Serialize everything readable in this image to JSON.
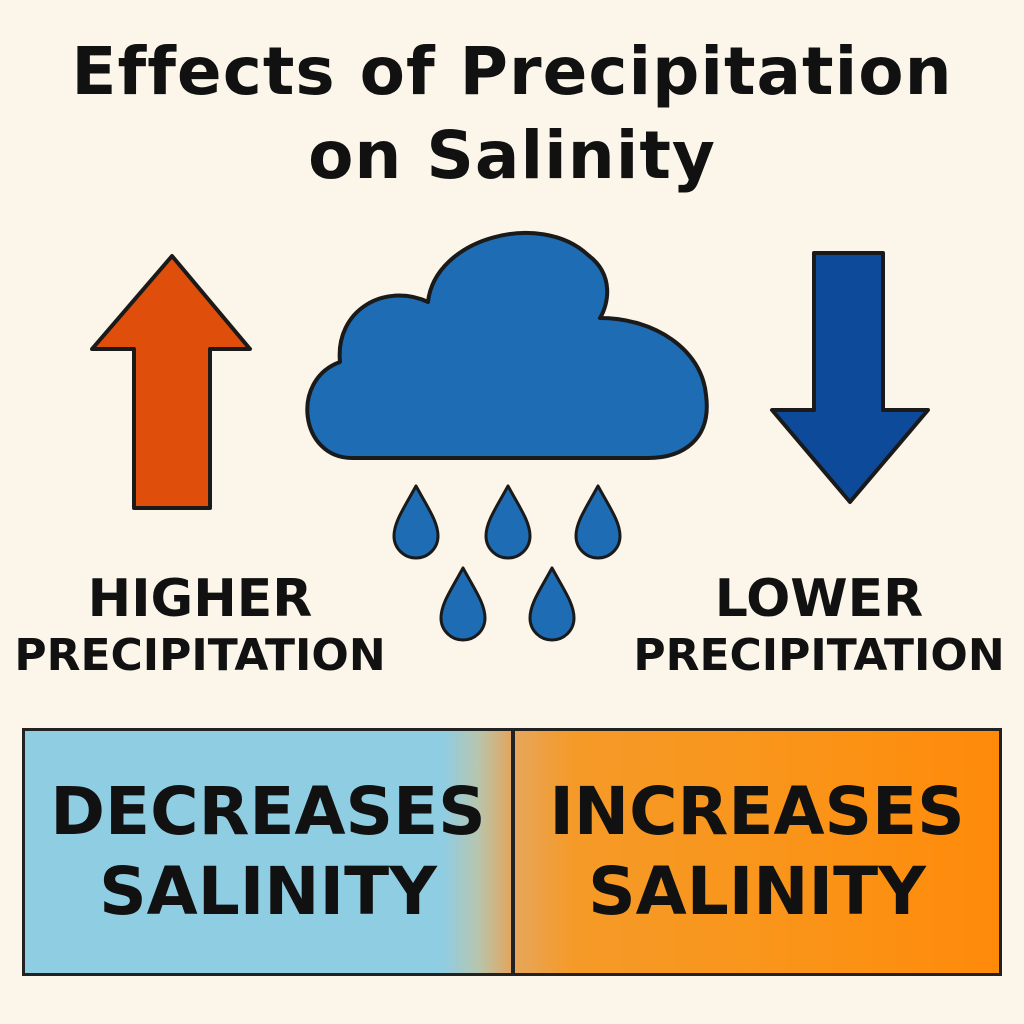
{
  "title": {
    "line1": "Effects of Precipitation",
    "line2": "on Salinity"
  },
  "left_label": {
    "line1": "HIGHER",
    "line2": "PRECIPITATION"
  },
  "right_label": {
    "line1": "LOWER",
    "line2": "PRECIPITATION"
  },
  "boxes": {
    "decrease": {
      "line1": "DECREASES",
      "line2": "SALINITY"
    },
    "increase": {
      "line1": "INCREASES",
      "line2": "SALINITY"
    }
  },
  "colors": {
    "background": "#fbf6e9",
    "up_arrow": "#e04e0c",
    "down_arrow": "#0d4a9a",
    "cloud": "#1e6cb4",
    "raindrop": "#1e6cb4",
    "decrease_box": "#8fcde3",
    "increase_box": "#fa9418"
  },
  "icons": [
    "up-arrow-icon",
    "rain-cloud-icon",
    "raindrop-icon",
    "down-arrow-icon"
  ]
}
